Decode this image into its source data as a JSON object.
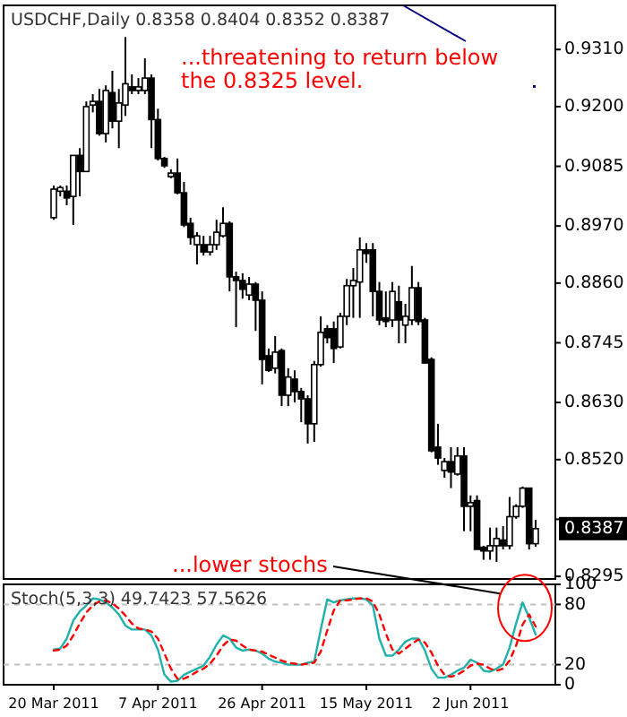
{
  "chart_data": [
    {
      "type": "candlestick",
      "title": "USDCHF,Daily 0.8358 0.8404 0.8352 0.8387",
      "annotations": [
        "...threatening to return below the 0.8325 level.",
        "0.8387"
      ],
      "categories": [
        null,
        null,
        null,
        null,
        null,
        null,
        null,
        null,
        null,
        null,
        null,
        null,
        null,
        null,
        null,
        null,
        null,
        null,
        null,
        null,
        null,
        null,
        null,
        null,
        null,
        null,
        null,
        null,
        null,
        null,
        null,
        null,
        null,
        null,
        null,
        null,
        null,
        null,
        null,
        null,
        null,
        null,
        null,
        null,
        null,
        null,
        null,
        null,
        null,
        null,
        null,
        null,
        null,
        null,
        null,
        null,
        null,
        null,
        null,
        null,
        null,
        null,
        null,
        null,
        null,
        null,
        null,
        null,
        null,
        null,
        null,
        null,
        null,
        null,
        null
      ],
      "ohlc": [
        [
          0.8986,
          0.9048,
          0.8982,
          0.9041
        ],
        [
          0.9037,
          0.9048,
          0.9027,
          0.9044
        ],
        [
          0.9037,
          0.9048,
          0.901,
          0.9024
        ],
        [
          0.9027,
          0.9106,
          0.8972,
          0.9106
        ],
        [
          0.9106,
          0.912,
          0.9027,
          0.9075
        ],
        [
          0.9075,
          0.921,
          0.9075,
          0.92
        ],
        [
          0.9203,
          0.9224,
          0.9189,
          0.921
        ],
        [
          0.921,
          0.9234,
          0.9144,
          0.9148
        ],
        [
          0.9148,
          0.9241,
          0.9131,
          0.9231
        ],
        [
          0.9227,
          0.9269,
          0.9158,
          0.9172
        ],
        [
          0.9172,
          0.9234,
          0.912,
          0.9207
        ],
        [
          0.9203,
          0.9334,
          0.9182,
          0.9244
        ],
        [
          0.9238,
          0.9262,
          0.9224,
          0.9231
        ],
        [
          0.9231,
          0.9255,
          0.9224,
          0.9238
        ],
        [
          0.9231,
          0.9293,
          0.9224,
          0.9255
        ],
        [
          0.9255,
          0.9262,
          0.912,
          0.9175
        ],
        [
          0.9175,
          0.9196,
          0.9096,
          0.91
        ],
        [
          0.91,
          0.9103,
          0.9082,
          0.9086
        ],
        [
          0.9065,
          0.9079,
          0.9062,
          0.9072
        ],
        [
          0.9072,
          0.91,
          0.9031,
          0.9034
        ],
        [
          0.9034,
          0.9055,
          0.8968,
          0.8972
        ],
        [
          0.8975,
          0.8986,
          0.8934,
          0.8948
        ],
        [
          0.8934,
          0.8958,
          0.8896,
          0.8951
        ],
        [
          0.8934,
          0.8951,
          0.8913,
          0.892
        ],
        [
          0.892,
          0.8951,
          0.8913,
          0.8934
        ],
        [
          0.8934,
          0.8982,
          0.8924,
          0.8958
        ],
        [
          0.8951,
          0.9006,
          0.8948,
          0.8975
        ],
        [
          0.8975,
          0.8979,
          0.8844,
          0.8872
        ],
        [
          0.8872,
          0.8882,
          0.8775,
          0.8865
        ],
        [
          0.8865,
          0.8879,
          0.883,
          0.8848
        ],
        [
          0.8837,
          0.8872,
          0.8827,
          0.8858
        ],
        [
          0.8858,
          0.8862,
          0.8768,
          0.8827
        ],
        [
          0.8827,
          0.8844,
          0.8665,
          0.8713
        ],
        [
          0.872,
          0.8734,
          0.8689,
          0.8692
        ],
        [
          0.8696,
          0.8758,
          0.8686,
          0.8727
        ],
        [
          0.873,
          0.8734,
          0.8623,
          0.8644
        ],
        [
          0.8644,
          0.8696,
          0.8623,
          0.8679
        ],
        [
          0.8675,
          0.8692,
          0.863,
          0.8651
        ],
        [
          0.8651,
          0.8658,
          0.8592,
          0.8637
        ],
        [
          0.8637,
          0.8644,
          0.8551,
          0.8589
        ],
        [
          0.8589,
          0.871,
          0.8554,
          0.8703
        ],
        [
          0.8703,
          0.8796,
          0.8699,
          0.8765
        ],
        [
          0.8772,
          0.8779,
          0.8744,
          0.8755
        ],
        [
          0.8772,
          0.8786,
          0.8706,
          0.8734
        ],
        [
          0.8737,
          0.8803,
          0.8734,
          0.8796
        ],
        [
          0.8796,
          0.8868,
          0.8779,
          0.8855
        ],
        [
          0.8855,
          0.8889,
          0.8793,
          0.8865
        ],
        [
          0.8862,
          0.8948,
          0.8793,
          0.8924
        ],
        [
          0.8924,
          0.8937,
          0.8899,
          0.8917
        ],
        [
          0.8924,
          0.8937,
          0.8796,
          0.8844
        ],
        [
          0.8844,
          0.8862,
          0.8779,
          0.8789
        ],
        [
          0.8793,
          0.8844,
          0.8775,
          0.8786
        ],
        [
          0.8789,
          0.8862,
          0.8775,
          0.8844
        ],
        [
          0.8824,
          0.8855,
          0.8744,
          0.8789
        ],
        [
          0.8779,
          0.882,
          0.8744,
          0.8796
        ],
        [
          0.8789,
          0.8893,
          0.8779,
          0.8851
        ],
        [
          0.8851,
          0.8862,
          0.8779,
          0.8786
        ],
        [
          0.8789,
          0.8793,
          0.8706,
          0.8706
        ],
        [
          0.8713,
          0.8717,
          0.8534,
          0.8537
        ],
        [
          0.8544,
          0.8589,
          0.851,
          0.8523
        ],
        [
          0.8499,
          0.8523,
          0.8485,
          0.8516
        ],
        [
          0.8516,
          0.8544,
          0.8465,
          0.8496
        ],
        [
          0.8492,
          0.8544,
          0.8489,
          0.8527
        ],
        [
          0.8527,
          0.8544,
          0.8382,
          0.843
        ],
        [
          0.843,
          0.8451,
          0.8382,
          0.8437
        ],
        [
          0.8441,
          0.8451,
          0.8347,
          0.8347
        ],
        [
          0.8351,
          0.8354,
          0.8327,
          0.8344
        ],
        [
          0.8344,
          0.8389,
          0.8327,
          0.8354
        ],
        [
          0.8354,
          0.8389,
          0.8323,
          0.8368
        ],
        [
          0.8365,
          0.8392,
          0.8347,
          0.8354
        ],
        [
          0.8354,
          0.8448,
          0.8347,
          0.841
        ],
        [
          0.841,
          0.8434,
          0.8406,
          0.843
        ],
        [
          0.843,
          0.8468,
          0.8427,
          0.8465
        ],
        [
          0.8465,
          0.8465,
          0.8347,
          0.8358
        ],
        [
          0.8358,
          0.8404,
          0.8352,
          0.8387
        ]
      ],
      "ylim": [
        0.829,
        0.9395
      ],
      "yticks": [
        {
          "value": 0.8295,
          "label": "0.8295"
        },
        {
          "value": 0.8405,
          "label": null
        },
        {
          "value": 0.852,
          "label": "0.8520"
        },
        {
          "value": 0.863,
          "label": "0.8630"
        },
        {
          "value": 0.8745,
          "label": "0.8745"
        },
        {
          "value": 0.886,
          "label": "0.8860"
        },
        {
          "value": 0.897,
          "label": "0.8970"
        },
        {
          "value": 0.9085,
          "label": "0.9085"
        },
        {
          "value": 0.92,
          "label": "0.9200"
        },
        {
          "value": 0.931,
          "label": "0.9310"
        }
      ],
      "tick_labels": "y"
    },
    {
      "type": "line",
      "title": "Stoch(5,3,3) 49.7423 57.5626",
      "annotations": [
        {
          "text": "...lower stochs",
          "y": 82
        }
      ],
      "categories": [
        "20 Mar 2011",
        null,
        null,
        null,
        null,
        null,
        null,
        null,
        null,
        null,
        null,
        null,
        null,
        null,
        null,
        null,
        "7 Apr 2011",
        null,
        null,
        null,
        null,
        null,
        null,
        null,
        null,
        null,
        null,
        null,
        null,
        null,
        null,
        null,
        "26 Apr 2011",
        null,
        null,
        null,
        null,
        null,
        null,
        null,
        null,
        null,
        null,
        null,
        null,
        null,
        null,
        null,
        "15 May 2011",
        null,
        null,
        null,
        null,
        null,
        null,
        null,
        null,
        null,
        null,
        null,
        null,
        null,
        null,
        null,
        "2 Jun 2011",
        null,
        null,
        null,
        null,
        null,
        null,
        null,
        null,
        null,
        null
      ],
      "series": [
        {
          "color": "#20b2aa",
          "line_style": "solid",
          "values": [
            35,
            36,
            46,
            64,
            73,
            79,
            86,
            85,
            82,
            77,
            70,
            59,
            55,
            55,
            55,
            49,
            35,
            10,
            3,
            4,
            10,
            13,
            16,
            19,
            28,
            40,
            49,
            46,
            37,
            34,
            35,
            34,
            31,
            26,
            23,
            22,
            20,
            20,
            20,
            22,
            23,
            55,
            85,
            82,
            84,
            85,
            86,
            86,
            85,
            79,
            46,
            29,
            29,
            35,
            43,
            46,
            46,
            34,
            16,
            7,
            7,
            10,
            14,
            17,
            25,
            22,
            14,
            13,
            16,
            20,
            37,
            61,
            82,
            67,
            50
          ]
        },
        {
          "color": "#ff0000",
          "line_style": "dashed",
          "values": [
            34,
            35,
            39,
            49,
            61,
            72,
            79,
            83,
            84,
            81,
            76,
            69,
            61,
            56,
            55,
            53,
            46,
            31,
            16,
            6,
            6,
            9,
            13,
            16,
            21,
            29,
            39,
            45,
            44,
            39,
            35,
            34,
            33,
            30,
            27,
            24,
            22,
            21,
            20,
            21,
            22,
            33,
            54,
            74,
            84,
            84,
            85,
            86,
            86,
            83,
            70,
            51,
            35,
            31,
            36,
            41,
            45,
            42,
            32,
            19,
            10,
            8,
            10,
            14,
            19,
            21,
            20,
            16,
            14,
            16,
            24,
            39,
            60,
            70,
            58
          ]
        }
      ],
      "ylim": [
        0,
        100
      ],
      "yticks": [
        0,
        20,
        80,
        100
      ],
      "ref_lines": [
        {
          "axis": "y",
          "value": 80,
          "color": "#c0c0c0",
          "line_style": "dashed"
        },
        {
          "axis": "y",
          "value": 20,
          "color": "#c0c0c0",
          "line_style": "dashed"
        }
      ]
    }
  ]
}
